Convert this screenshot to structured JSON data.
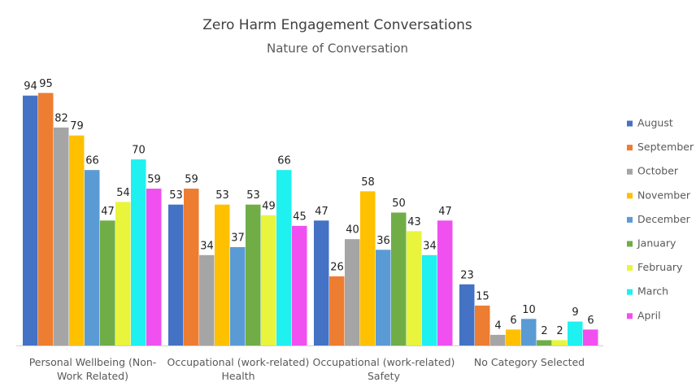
{
  "chart_data": {
    "type": "bar",
    "title": "Zero Harm Engagement Conversations",
    "subtitle": "Nature of Conversation",
    "categories": [
      "Personal Wellbeing (Non-Work Related)",
      "Occupational (work-related) Health",
      "Occupational (work-related) Safety",
      "No Category Selected"
    ],
    "series": [
      {
        "name": "August",
        "color": "#4472c4",
        "values": [
          94,
          53,
          47,
          23
        ]
      },
      {
        "name": "September",
        "color": "#ed7d31",
        "values": [
          95,
          59,
          26,
          15
        ]
      },
      {
        "name": "October",
        "color": "#a5a5a5",
        "values": [
          82,
          34,
          40,
          4
        ]
      },
      {
        "name": "November",
        "color": "#ffc000",
        "values": [
          79,
          53,
          58,
          6
        ]
      },
      {
        "name": "December",
        "color": "#5b9bd5",
        "values": [
          66,
          37,
          36,
          10
        ]
      },
      {
        "name": "January",
        "color": "#70ad47",
        "values": [
          47,
          53,
          50,
          2
        ]
      },
      {
        "name": "February",
        "color": "#e8f53c",
        "values": [
          54,
          49,
          43,
          2
        ]
      },
      {
        "name": "March",
        "color": "#1ff0f0",
        "values": [
          70,
          66,
          34,
          9
        ]
      },
      {
        "name": "April",
        "color": "#f050f0",
        "values": [
          59,
          45,
          47,
          6
        ]
      }
    ],
    "legend": "right"
  }
}
